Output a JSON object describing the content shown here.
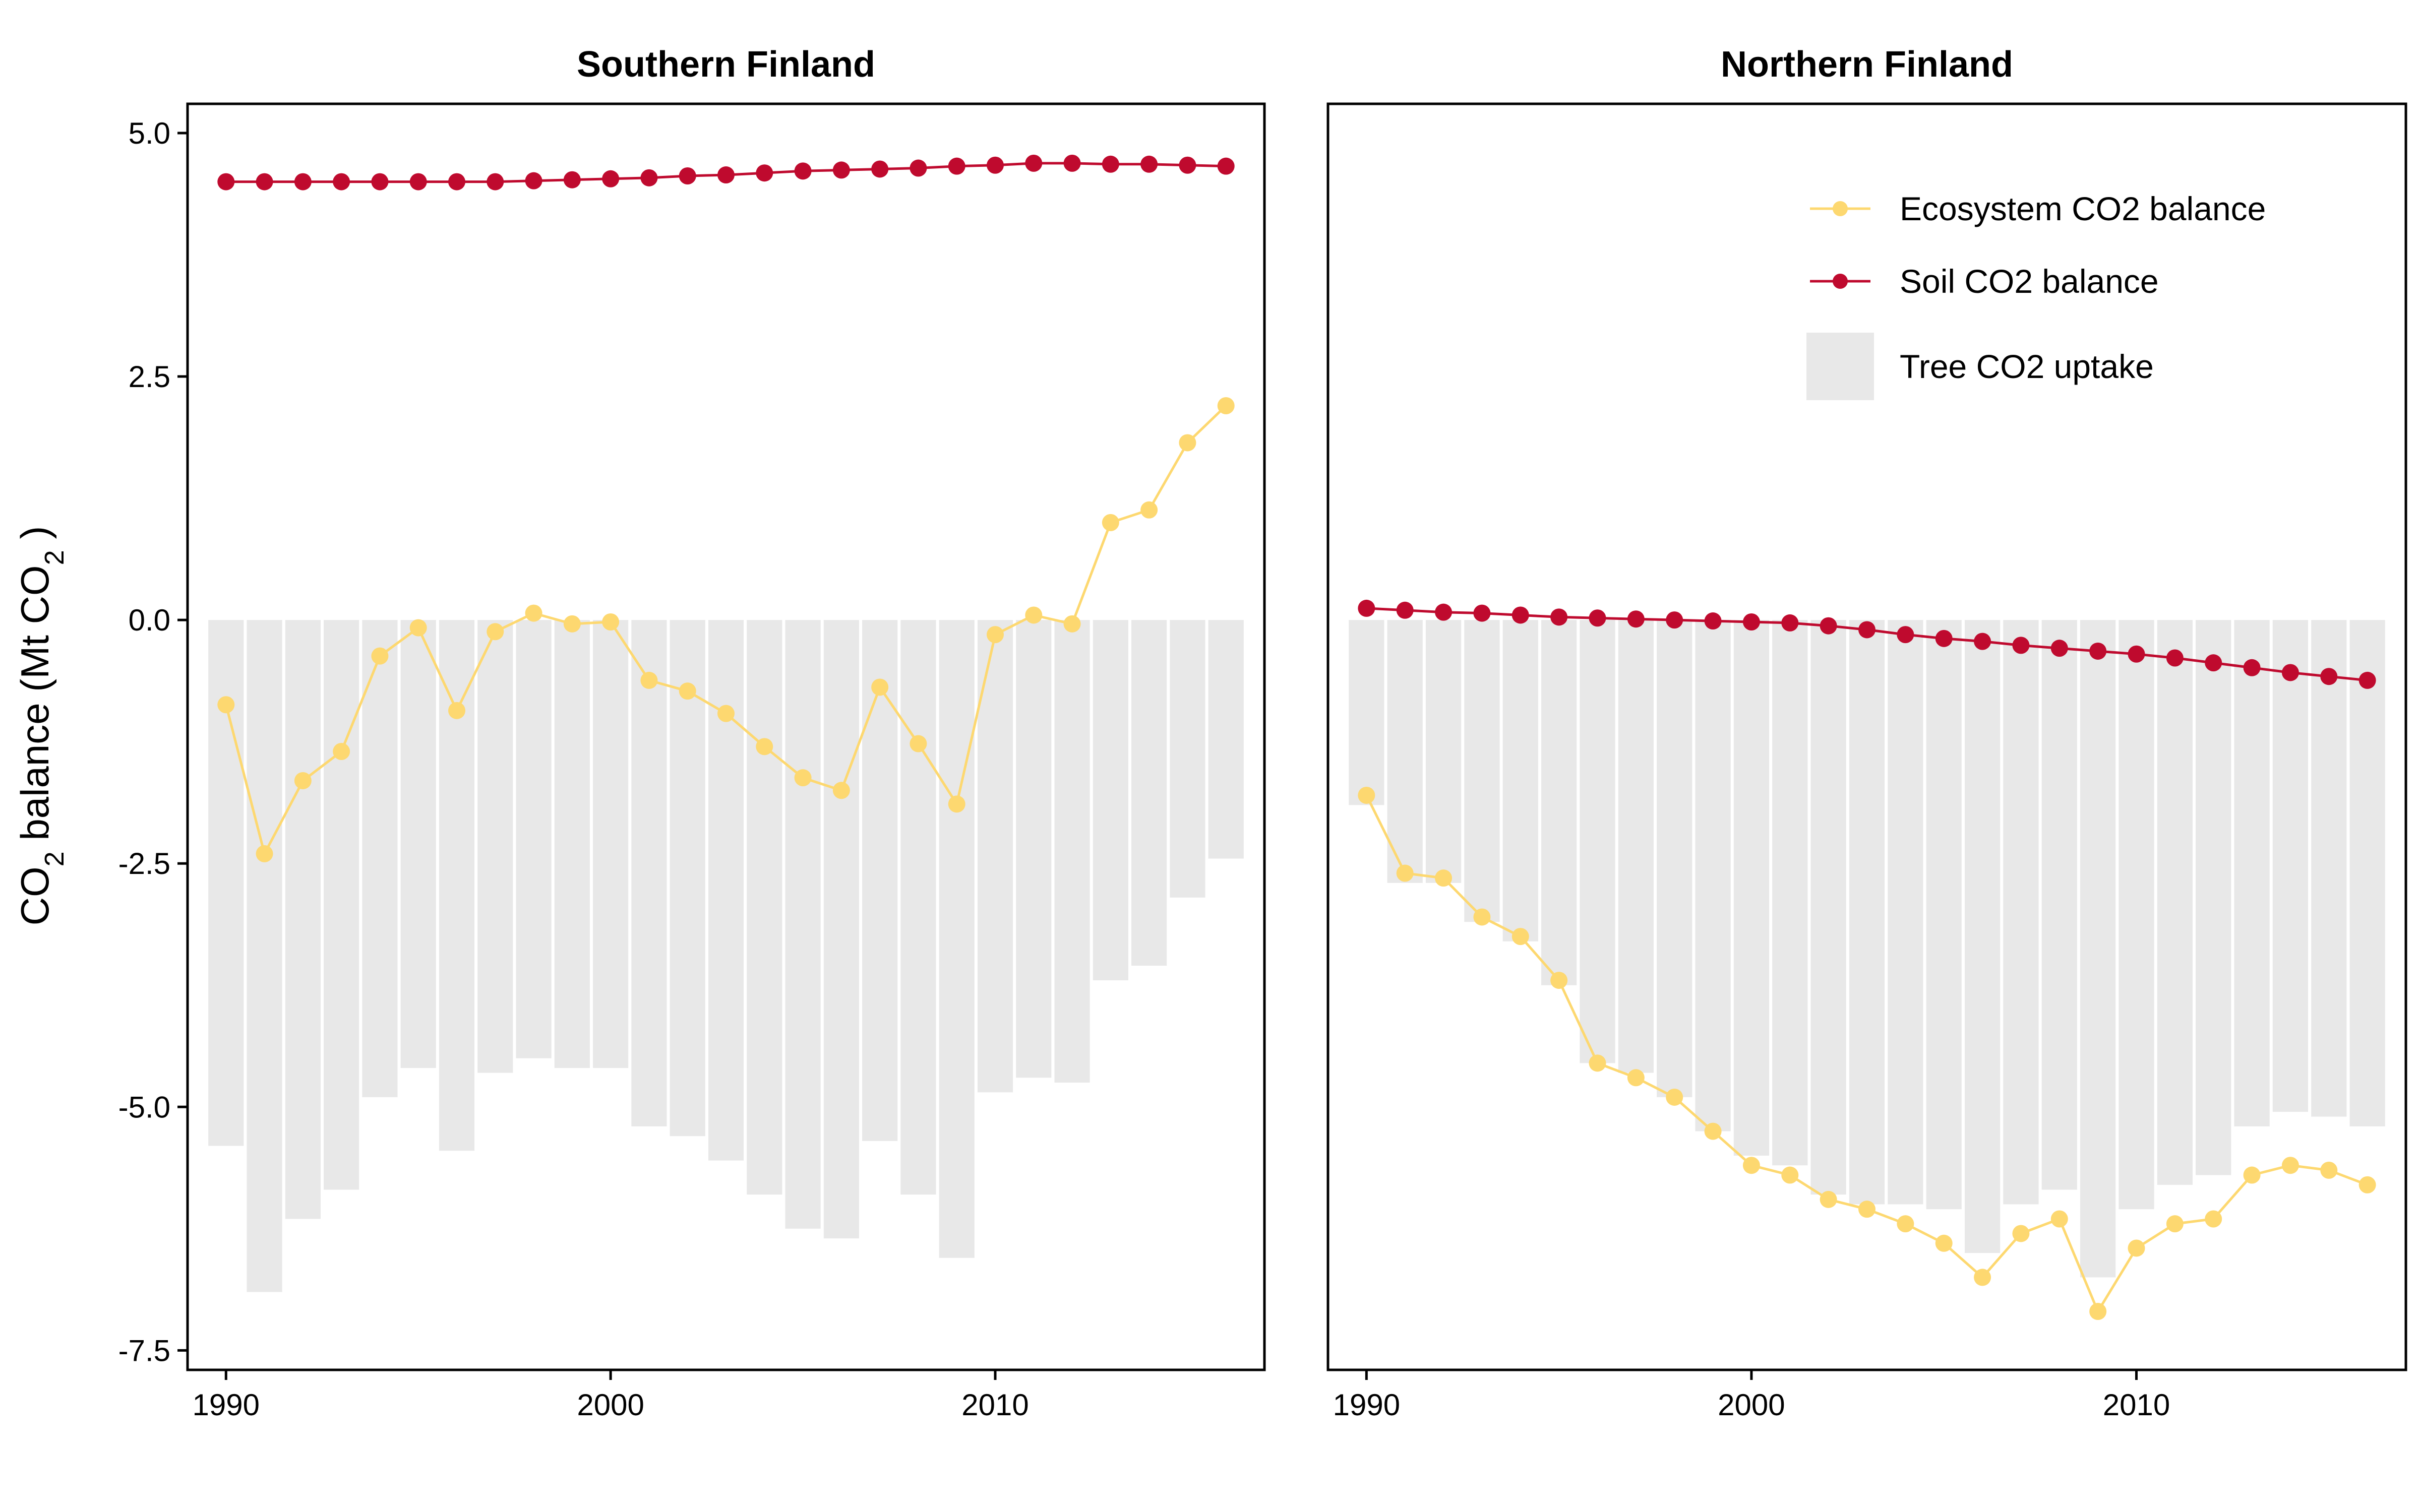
{
  "chart_data": {
    "type": "bar+line",
    "ylabel": {
      "main": "CO",
      "sub": "2",
      "rest": " balance (Mt  CO",
      "sub2": "2",
      "end": " )"
    },
    "y_ticks": [
      "-7.5",
      "-5.0",
      "-2.5",
      "0.0",
      "2.5",
      "5.0"
    ],
    "y_tick_values": [
      -7.5,
      -5.0,
      -2.5,
      0.0,
      2.5,
      5.0
    ],
    "ylim": [
      -7.7,
      5.3
    ],
    "xlim": [
      1989.0,
      2017.0
    ],
    "x_ticks": [
      "1990",
      "2000",
      "2010"
    ],
    "x_tick_values": [
      1990,
      2000,
      2010
    ],
    "grid": false,
    "legend": {
      "placement": "top-right of Northern Finland panel",
      "entries": [
        {
          "label": "Ecosystem CO2 balance",
          "kind": "line-point",
          "color": "#FDD870"
        },
        {
          "label": "Soil CO2 balance",
          "kind": "line-point",
          "color": "#BF0A2E"
        },
        {
          "label": "Tree CO2 uptake",
          "kind": "bar",
          "color": "#E8E8E8"
        }
      ]
    },
    "colors": {
      "ecosystem": "#FDD870",
      "soil": "#BF0A2E",
      "tree": "#E8E8E8"
    },
    "years": [
      1990,
      1991,
      1992,
      1993,
      1994,
      1995,
      1996,
      1997,
      1998,
      1999,
      2000,
      2001,
      2002,
      2003,
      2004,
      2005,
      2006,
      2007,
      2008,
      2009,
      2010,
      2011,
      2012,
      2013,
      2014,
      2015,
      2016
    ],
    "panels": [
      {
        "title": "Southern Finland",
        "series": [
          {
            "name": "Tree CO2 uptake",
            "type": "bar",
            "values": [
              -5.4,
              -6.9,
              -6.15,
              -5.85,
              -4.9,
              -4.6,
              -5.45,
              -4.65,
              -4.5,
              -4.6,
              -4.6,
              -5.2,
              -5.3,
              -5.55,
              -5.9,
              -6.25,
              -6.35,
              -5.35,
              -5.9,
              -6.55,
              -4.85,
              -4.7,
              -4.75,
              -3.7,
              -3.55,
              -2.85,
              -2.45
            ]
          },
          {
            "name": "Soil CO2 balance",
            "type": "line",
            "values": [
              4.5,
              4.5,
              4.5,
              4.5,
              4.5,
              4.5,
              4.5,
              4.5,
              4.51,
              4.52,
              4.53,
              4.54,
              4.56,
              4.57,
              4.59,
              4.61,
              4.62,
              4.63,
              4.64,
              4.66,
              4.67,
              4.69,
              4.69,
              4.68,
              4.68,
              4.67,
              4.66
            ]
          },
          {
            "name": "Ecosystem CO2 balance",
            "type": "line",
            "values": [
              -0.87,
              -2.4,
              -1.65,
              -1.35,
              -0.37,
              -0.08,
              -0.93,
              -0.12,
              0.07,
              -0.04,
              -0.02,
              -0.62,
              -0.73,
              -0.96,
              -1.3,
              -1.62,
              -1.75,
              -0.69,
              -1.27,
              -1.89,
              -0.15,
              0.05,
              -0.04,
              1.0,
              1.13,
              1.82,
              2.2
            ]
          }
        ]
      },
      {
        "title": "Northern Finland",
        "series": [
          {
            "name": "Tree CO2 uptake",
            "type": "bar",
            "values": [
              -1.9,
              -2.7,
              -2.7,
              -3.1,
              -3.3,
              -3.75,
              -4.55,
              -4.65,
              -4.9,
              -5.25,
              -5.5,
              -5.6,
              -5.9,
              -6.0,
              -6.0,
              -6.05,
              -6.5,
              -6.0,
              -5.85,
              -6.75,
              -6.05,
              -5.8,
              -5.7,
              -5.2,
              -5.05,
              -5.1,
              -5.2
            ]
          },
          {
            "name": "Soil CO2 balance",
            "type": "line",
            "values": [
              0.12,
              0.1,
              0.08,
              0.07,
              0.05,
              0.03,
              0.02,
              0.01,
              0.0,
              -0.01,
              -0.02,
              -0.03,
              -0.06,
              -0.1,
              -0.15,
              -0.19,
              -0.22,
              -0.26,
              -0.29,
              -0.32,
              -0.35,
              -0.39,
              -0.44,
              -0.49,
              -0.54,
              -0.58,
              -0.62
            ]
          },
          {
            "name": "Ecosystem CO2 balance",
            "type": "line",
            "values": [
              -1.8,
              -2.6,
              -2.65,
              -3.05,
              -3.25,
              -3.7,
              -4.55,
              -4.7,
              -4.9,
              -5.25,
              -5.6,
              -5.7,
              -5.95,
              -6.05,
              -6.2,
              -6.4,
              -6.75,
              -6.3,
              -6.15,
              -7.1,
              -6.45,
              -6.2,
              -6.15,
              -5.7,
              -5.6,
              -5.65,
              -5.8
            ]
          }
        ]
      }
    ]
  }
}
